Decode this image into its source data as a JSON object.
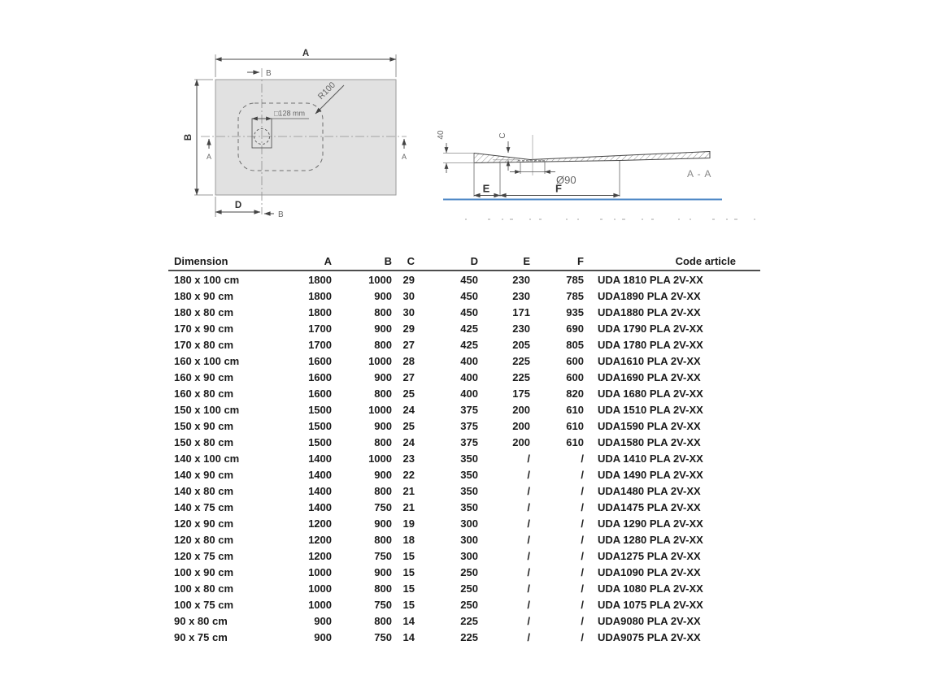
{
  "drawing": {
    "plan": {
      "dim_a_label": "A",
      "dim_b_label": "B",
      "dim_d_label": "D",
      "section_b_top_label": "B",
      "section_b_bottom_label": "B",
      "section_a_left_label": "A",
      "section_a_right_label": "A",
      "radius_label": "R100",
      "drain_size_label": "□128 mm"
    },
    "section": {
      "edge_height_label": "40",
      "depth_label": "C",
      "drain_diameter_label": "Ø90",
      "dim_e_label": "E",
      "dim_f_label": "F",
      "view_label": "A - A"
    },
    "colors": {
      "tray_fill": "#e1e1e1",
      "ground_line": "#4a85c5"
    }
  },
  "table": {
    "columns": [
      "Dimension",
      "A",
      "B",
      "C",
      "D",
      "E",
      "F",
      "Code article"
    ],
    "rows": [
      [
        "180 x 100 cm",
        "1800",
        "1000",
        "29",
        "450",
        "230",
        "785",
        "UDA 1810 PLA 2V-XX"
      ],
      [
        "180 x 90 cm",
        "1800",
        "900",
        "30",
        "450",
        "230",
        "785",
        "UDA1890 PLA 2V-XX"
      ],
      [
        "180 x 80 cm",
        "1800",
        "800",
        "30",
        "450",
        "171",
        "935",
        "UDA1880 PLA 2V-XX"
      ],
      [
        "170 x 90 cm",
        "1700",
        "900",
        "29",
        "425",
        "230",
        "690",
        "UDA 1790 PLA 2V-XX"
      ],
      [
        "170 x 80 cm",
        "1700",
        "800",
        "27",
        "425",
        "205",
        "805",
        "UDA 1780 PLA 2V-XX"
      ],
      [
        "160 x 100 cm",
        "1600",
        "1000",
        "28",
        "400",
        "225",
        "600",
        "UDA1610 PLA 2V-XX"
      ],
      [
        "160 x 90 cm",
        "1600",
        "900",
        "27",
        "400",
        "225",
        "600",
        "UDA1690 PLA 2V-XX"
      ],
      [
        "160 x 80 cm",
        "1600",
        "800",
        "25",
        "400",
        "175",
        "820",
        "UDA 1680 PLA 2V-XX"
      ],
      [
        "150 x 100 cm",
        "1500",
        "1000",
        "24",
        "375",
        "200",
        "610",
        "UDA 1510 PLA 2V-XX"
      ],
      [
        "150 x 90 cm",
        "1500",
        "900",
        "25",
        "375",
        "200",
        "610",
        "UDA1590 PLA 2V-XX"
      ],
      [
        "150 x 80 cm",
        "1500",
        "800",
        "24",
        "375",
        "200",
        "610",
        "UDA1580 PLA 2V-XX"
      ],
      [
        "140 x 100 cm",
        "1400",
        "1000",
        "23",
        "350",
        "/",
        "/",
        "UDA 1410 PLA 2V-XX"
      ],
      [
        "140 x 90 cm",
        "1400",
        "900",
        "22",
        "350",
        "/",
        "/",
        "UDA 1490 PLA 2V-XX"
      ],
      [
        "140 x 80 cm",
        "1400",
        "800",
        "21",
        "350",
        "/",
        "/",
        "UDA1480 PLA 2V-XX"
      ],
      [
        "140 x 75 cm",
        "1400",
        "750",
        "21",
        "350",
        "/",
        "/",
        "UDA1475 PLA 2V-XX"
      ],
      [
        "120 x 90 cm",
        "1200",
        "900",
        "19",
        "300",
        "/",
        "/",
        "UDA 1290 PLA 2V-XX"
      ],
      [
        "120 x 80 cm",
        "1200",
        "800",
        "18",
        "300",
        "/",
        "/",
        "UDA 1280 PLA 2V-XX"
      ],
      [
        "120 x 75 cm",
        "1200",
        "750",
        "15",
        "300",
        "/",
        "/",
        "UDA1275 PLA 2V-XX"
      ],
      [
        "100 x 90 cm",
        "1000",
        "900",
        "15",
        "250",
        "/",
        "/",
        "UDA1090 PLA 2V-XX"
      ],
      [
        "100 x 80 cm",
        "1000",
        "800",
        "15",
        "250",
        "/",
        "/",
        "UDA 1080 PLA 2V-XX"
      ],
      [
        "100 x 75 cm",
        "1000",
        "750",
        "15",
        "250",
        "/",
        "/",
        "UDA 1075 PLA 2V-XX"
      ],
      [
        "90 x 80 cm",
        "900",
        "800",
        "14",
        "225",
        "/",
        "/",
        "UDA9080 PLA 2V-XX"
      ],
      [
        "90 x 75 cm",
        "900",
        "750",
        "14",
        "225",
        "/",
        "/",
        "UDA9075 PLA 2V-XX"
      ]
    ]
  }
}
